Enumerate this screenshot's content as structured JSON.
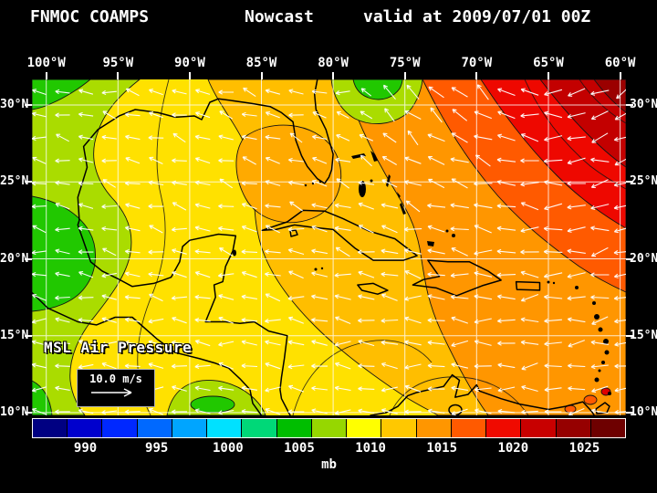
{
  "header": {
    "model": "FNMOC COAMPS",
    "product": "Nowcast",
    "valid": "valid at 2009/07/01 00Z"
  },
  "axes": {
    "lon_labels": [
      "100°W",
      "95°W",
      "90°W",
      "85°W",
      "80°W",
      "75°W",
      "70°W",
      "65°W",
      "60°W"
    ],
    "lat_labels": [
      "30°N",
      "25°N",
      "20°N",
      "15°N",
      "10°N"
    ]
  },
  "map": {
    "field_label": "MSL Air Pressure",
    "wind_ref_label": "10.0 m/s"
  },
  "wind": {
    "color": "#ffffff"
  },
  "colorbar": {
    "units": "mb",
    "tick_labels": [
      "990",
      "995",
      "1000",
      "1005",
      "1010",
      "1015",
      "1020",
      "1025"
    ],
    "cells": [
      "#000082",
      "#0000cd",
      "#0028ff",
      "#0069ff",
      "#00a5ff",
      "#00e1ff",
      "#00d878",
      "#00be00",
      "#96d700",
      "#ffff00",
      "#ffc800",
      "#ff9600",
      "#ff5a00",
      "#f00a00",
      "#c80000",
      "#960000",
      "#6e0000"
    ]
  },
  "palette": {
    "background": "#000000",
    "text": "#ffffff",
    "field_yellow_1010": "#ffe100",
    "field_yellow_green": "#aadc00",
    "field_green": "#21c800",
    "field_light_orange": "#ffbe00",
    "field_orange": "#ff9600",
    "field_dark_orange": "#ff5a00",
    "field_red": "#ee0800",
    "field_dark_red": "#c30000",
    "field_maroon": "#9b0000"
  },
  "chart_data": {
    "type": "heatmap",
    "title": "FNMOC COAMPS Nowcast valid at 2009/07/01 00Z",
    "variable": "MSL Air Pressure",
    "units": "mb",
    "x_ticks_lon_deg_west": [
      100,
      95,
      90,
      85,
      80,
      75,
      70,
      65,
      60
    ],
    "y_ticks_lat_deg_north": [
      30,
      25,
      20,
      15,
      10
    ],
    "colorbar": {
      "ticks_mb": [
        990,
        995,
        1000,
        1005,
        1010,
        1015,
        1020,
        1025
      ],
      "cell_interval_mb": 2.5,
      "range_mb": [
        987.5,
        1030
      ]
    },
    "approx_pressure_grid_mb": {
      "lats_n": [
        30,
        25,
        20,
        15,
        10
      ],
      "lons_w": [
        100,
        95,
        90,
        85,
        80,
        75,
        70,
        65,
        60
      ],
      "values": [
        [
          1006,
          1010,
          1012,
          1013,
          1009,
          1015,
          1019,
          1021,
          1023
        ],
        [
          1006,
          1010,
          1012,
          1013,
          1014,
          1016,
          1018,
          1020,
          1021
        ],
        [
          1005,
          1010,
          1012,
          1013,
          1014,
          1015,
          1016,
          1017,
          1019
        ],
        [
          1007,
          1009,
          1011,
          1012,
          1013,
          1014,
          1015,
          1015,
          1016
        ],
        [
          1009,
          1008,
          1010,
          1011,
          1012,
          1012,
          1013,
          1013,
          1014
        ]
      ]
    },
    "pattern_notes": "Subtropical high (>1020 mb, red) over NW Atlantic top-right; broad 1010-1015 mb (yellow-orange) over Gulf of Mexico and Caribbean; weak low (~1005 mb, green) along Mexican Pacific coast left edge and over SE United States at top center; easterly trade-wind arrows across the basin.",
    "wind_reference": {
      "label": "10.0 m/s",
      "speed_ms": 10.0
    },
    "legend_position": "bottom"
  }
}
